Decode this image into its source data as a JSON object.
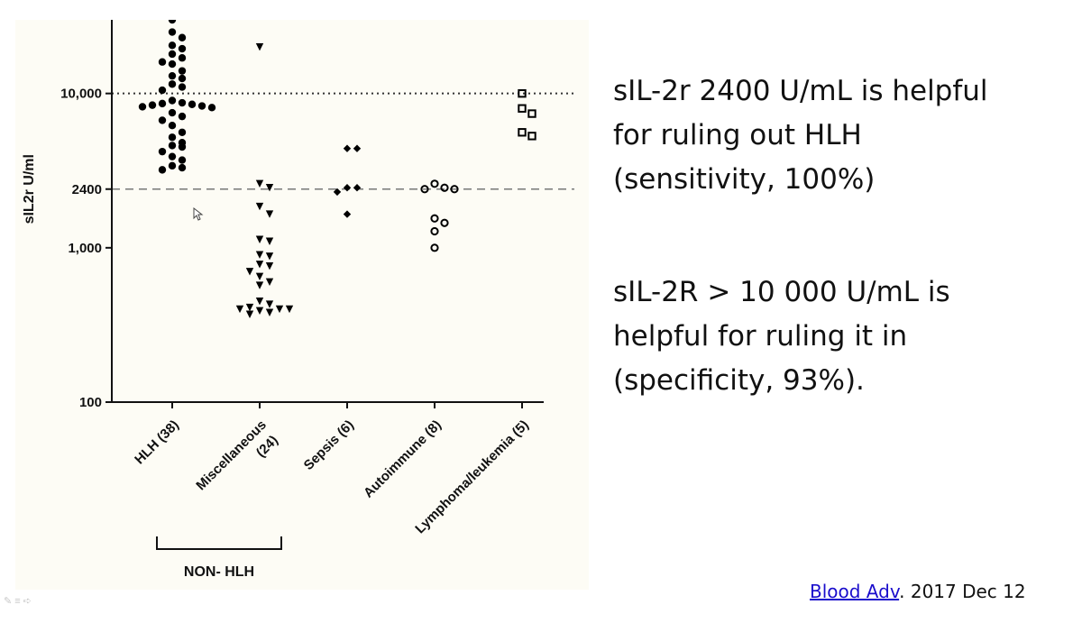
{
  "slide": {
    "statements": [
      {
        "lines": [
          "sIL-2r 2400 U/mL is helpful",
          "for ruling out HLH",
          "(sensitivity, 100%)"
        ]
      },
      {
        "lines": [
          "sIL-2R > 10 000 U/mL is",
          "helpful for ruling it in",
          "(specificity, 93%)."
        ]
      }
    ],
    "citation": {
      "link_text": "Blood Adv",
      "rest": ". 2017 Dec 12"
    }
  },
  "chart_data": {
    "type": "scatter",
    "ylabel": "sIL2r U/ml",
    "yscale": "log",
    "ylim": [
      100,
      30000
    ],
    "yticks": [
      {
        "value": 100,
        "label": "100"
      },
      {
        "value": 1000,
        "label": "1,000"
      },
      {
        "value": 2400,
        "label": "2400"
      },
      {
        "value": 10000,
        "label": "10,000"
      }
    ],
    "reference_lines": [
      {
        "value": 10000,
        "style": "dotted"
      },
      {
        "value": 2400,
        "style": "dashed"
      }
    ],
    "group_bracket": {
      "label": "NON- HLH",
      "from_category": 1,
      "to_category": 4
    },
    "categories": [
      {
        "label": [
          "HLH (38)"
        ],
        "marker": "filled-circle",
        "color": "#000000",
        "values": [
          30000,
          25000,
          23000,
          20500,
          19500,
          18000,
          17000,
          16000,
          15500,
          14000,
          13000,
          12500,
          11500,
          11000,
          10500,
          9000,
          8700,
          8600,
          8500,
          8400,
          8300,
          8200,
          8100,
          7500,
          7100,
          6700,
          6200,
          5600,
          5200,
          4800,
          4600,
          4500,
          4200,
          3900,
          3700,
          3400,
          3300,
          3200
        ]
      },
      {
        "label": [
          "Miscellaneous",
          "(24)"
        ],
        "marker": "filled-triangle-down",
        "color": "#000000",
        "values": [
          20000,
          2600,
          2450,
          1850,
          1650,
          1130,
          1100,
          900,
          880,
          780,
          760,
          700,
          650,
          600,
          570,
          450,
          430,
          410,
          400,
          400,
          400,
          390,
          380,
          370
        ]
      },
      {
        "label": [
          "Sepsis (6)"
        ],
        "marker": "filled-diamond",
        "color": "#000000",
        "values": [
          4400,
          4400,
          2450,
          2450,
          2300,
          1650
        ]
      },
      {
        "label": [
          "Autoimmune (8)"
        ],
        "marker": "open-circle",
        "color": "#000000",
        "values": [
          2600,
          2400,
          2400,
          2450,
          1550,
          1450,
          1280,
          1000
        ]
      },
      {
        "label": [
          "Lymphoma/leukemia (5)"
        ],
        "marker": "open-square",
        "color": "#000000",
        "values": [
          10000,
          8000,
          7400,
          5600,
          5300
        ]
      }
    ]
  }
}
